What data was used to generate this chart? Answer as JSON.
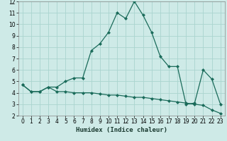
{
  "title": "",
  "xlabel": "Humidex (Indice chaleur)",
  "background_color": "#ceeae7",
  "grid_color": "#aad4cf",
  "line_color": "#1a6b5a",
  "marker_color": "#1a6b5a",
  "xlim": [
    -0.5,
    23.5
  ],
  "ylim": [
    2,
    12
  ],
  "xticks": [
    0,
    1,
    2,
    3,
    4,
    5,
    6,
    7,
    8,
    9,
    10,
    11,
    12,
    13,
    14,
    15,
    16,
    17,
    18,
    19,
    20,
    21,
    22,
    23
  ],
  "yticks": [
    2,
    3,
    4,
    5,
    6,
    7,
    8,
    9,
    10,
    11,
    12
  ],
  "series1_x": [
    0,
    1,
    2,
    3,
    4,
    5,
    6,
    7,
    8,
    9,
    10,
    11,
    12,
    13,
    14,
    15,
    16,
    17,
    18,
    19,
    20,
    21,
    22,
    23
  ],
  "series1_y": [
    4.7,
    4.1,
    4.1,
    4.5,
    4.5,
    5.0,
    5.3,
    5.3,
    7.7,
    8.3,
    9.3,
    11.0,
    10.5,
    12.0,
    10.8,
    9.3,
    7.2,
    6.3,
    6.3,
    3.0,
    3.1,
    6.0,
    5.2,
    3.0
  ],
  "series2_x": [
    0,
    1,
    2,
    3,
    4,
    5,
    6,
    7,
    8,
    9,
    10,
    11,
    12,
    13,
    14,
    15,
    16,
    17,
    18,
    19,
    20,
    21,
    22,
    23
  ],
  "series2_y": [
    4.7,
    4.1,
    4.1,
    4.5,
    4.1,
    4.1,
    4.0,
    4.0,
    4.0,
    3.9,
    3.8,
    3.8,
    3.7,
    3.6,
    3.6,
    3.5,
    3.4,
    3.3,
    3.2,
    3.1,
    3.0,
    2.9,
    2.5,
    2.2
  ],
  "tick_fontsize": 5.5,
  "label_fontsize": 6.5
}
